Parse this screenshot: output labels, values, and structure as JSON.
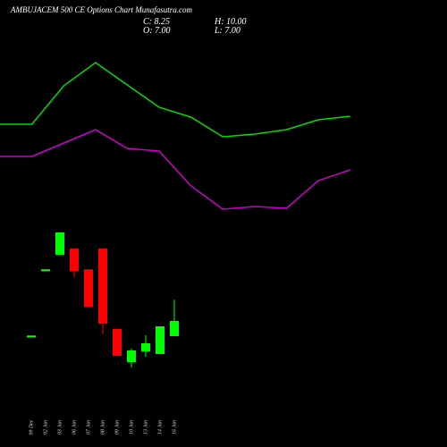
{
  "header": {
    "title": "AMBUJACEM 500 CE Options Chart Munafasutra.com",
    "close": "C: 8.25",
    "high": "H: 10.00",
    "open": "O: 7.00",
    "low": "L: 7.00"
  },
  "chart_data": [
    {
      "type": "line",
      "ylim": [
        0,
        250
      ],
      "series": [
        {
          "color": "#00dd00",
          "values": [
            111,
            111,
            154,
            180,
            155,
            130,
            119,
            97,
            100,
            105,
            116,
            120
          ]
        },
        {
          "color": "#cc00cc",
          "values": [
            75,
            75,
            90,
            105,
            84,
            81,
            42,
            16,
            19,
            17,
            48,
            60
          ]
        }
      ]
    },
    {
      "type": "candlestick",
      "ylim": [
        2.29,
        15.9
      ],
      "up_color": "#00ff00",
      "down_color": "#ff0000",
      "categories": [
        "09 Dec",
        "02 Jan",
        "03 Jan",
        "06 Jan",
        "07 Jan",
        "08 Jan",
        "09 Jan",
        "10 Jan",
        "13 Jan",
        "14 Jan",
        "16 Jan"
      ],
      "open": [
        7.05,
        12.5,
        13.7,
        14.2,
        12.5,
        14.2,
        7.59,
        4.87,
        5.75,
        5.53,
        7.0
      ],
      "high": [
        7.05,
        12.5,
        15.55,
        14.2,
        12.5,
        14.2,
        7.59,
        5.97,
        7.07,
        7.81,
        10.0
      ],
      "low": [
        7.05,
        12.5,
        13.7,
        11.85,
        9.43,
        7.22,
        5.38,
        4.43,
        5.31,
        5.53,
        7.0
      ],
      "close": [
        7.05,
        12.5,
        15.53,
        12.37,
        9.43,
        8.03,
        5.38,
        5.82,
        6.41,
        7.81,
        8.25
      ]
    }
  ]
}
